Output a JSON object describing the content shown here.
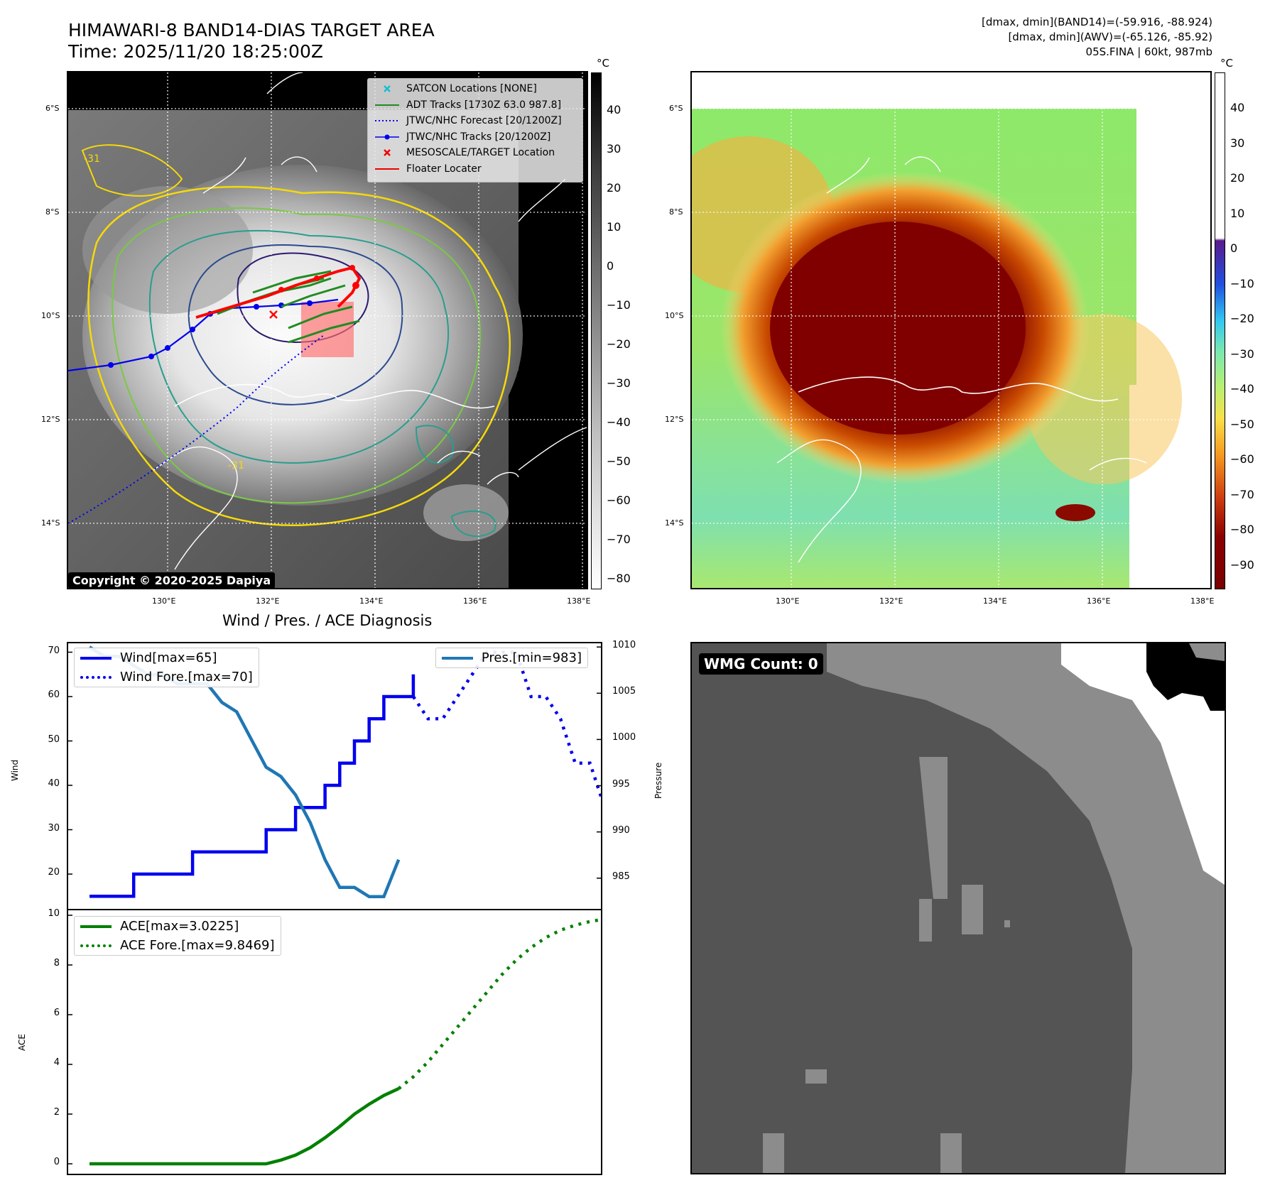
{
  "header": {
    "title": "HIMAWARI-8 BAND14-DIAS TARGET AREA",
    "time": "Time: 2025/11/20 18:25:00Z",
    "info_band14": "[dmax, dmin](BAND14)=(-59.916, -88.924)",
    "info_awv": "[dmax, dmin](AWV)=(-65.126, -85.92)",
    "info_storm": "05S.FINA | 60kt, 987mb"
  },
  "map": {
    "lat_labels": [
      "6°S",
      "8°S",
      "10°S",
      "12°S",
      "14°S"
    ],
    "lon_labels": [
      "130°E",
      "132°E",
      "134°E",
      "136°E",
      "138°E"
    ],
    "contour_label": "-31",
    "copyright": "Copyright © 2020-2025 Dapiya",
    "legend": [
      {
        "label": "SATCON Locations [NONE]",
        "color": "#17becf",
        "kind": "x"
      },
      {
        "label": "ADT Tracks [1730Z 63.0 987.8]",
        "color": "#228b22",
        "kind": "line"
      },
      {
        "label": "JTWC/NHC Forecast [20/1200Z]",
        "color": "#0000ee",
        "kind": "dot"
      },
      {
        "label": "JTWC/NHC Tracks [20/1200Z]",
        "color": "#0000ee",
        "kind": "marker"
      },
      {
        "label": "MESOSCALE/TARGET Location",
        "color": "#ee0000",
        "kind": "x"
      },
      {
        "label": "Floater Locater",
        "color": "#ee0000",
        "kind": "line"
      }
    ]
  },
  "colorbar1": {
    "unit": "°C",
    "ticks": [
      "40",
      "30",
      "20",
      "10",
      "0",
      "−10",
      "−20",
      "−30",
      "−40",
      "−50",
      "−60",
      "−70",
      "−80"
    ]
  },
  "colorbar2": {
    "unit": "°C",
    "ticks": [
      "40",
      "30",
      "20",
      "10",
      "0",
      "−10",
      "−20",
      "−30",
      "−40",
      "−50",
      "−60",
      "−70",
      "−80",
      "−90"
    ]
  },
  "wmg": {
    "label": "WMG Count: 0"
  },
  "chart_data": [
    {
      "type": "line",
      "title": "Wind / Pres. / ACE Diagnosis",
      "ylabel": "Wind",
      "ylabel2": "Pressure",
      "ylim": [
        12,
        72
      ],
      "ylim2": [
        981.6,
        1010.4
      ],
      "xlim": [
        0,
        36
      ],
      "yticks": [
        20,
        30,
        40,
        50,
        60,
        70
      ],
      "yticks2": [
        985,
        990,
        995,
        1000,
        1005,
        1010
      ],
      "series": [
        {
          "name": "Wind[max=65]",
          "style": "solid",
          "color": "#0000ee",
          "x": [
            0,
            2,
            3,
            4,
            5,
            6,
            7,
            8,
            9,
            10,
            11,
            12,
            13,
            14,
            15,
            16,
            17,
            18,
            19,
            20,
            21,
            22
          ],
          "values": [
            15,
            15,
            20,
            20,
            20,
            20,
            25,
            25,
            25,
            25,
            25,
            30,
            30,
            35,
            35,
            40,
            45,
            50,
            55,
            60,
            60,
            65
          ]
        },
        {
          "name": "Wind Fore.[max=70]",
          "style": "dotted",
          "color": "#0000ee",
          "x": [
            22,
            23,
            24,
            25,
            26,
            27,
            28,
            29,
            30,
            31,
            32,
            33,
            34,
            35
          ],
          "values": [
            60,
            55,
            55,
            60,
            65,
            70,
            70,
            70,
            60,
            60,
            55,
            45,
            45,
            35
          ]
        },
        {
          "name": "Pres.[min=983]",
          "style": "solid",
          "color": "#1f77b4",
          "axis": "right",
          "x": [
            0,
            1,
            2,
            3,
            4,
            5,
            6,
            7,
            8,
            9,
            10,
            11,
            12,
            13,
            14,
            15,
            16,
            17,
            18,
            19,
            20,
            21
          ],
          "values": [
            1010,
            1009,
            1009,
            1008,
            1007,
            1007,
            1006,
            1006,
            1006,
            1004,
            1003,
            1000,
            997,
            996,
            994,
            991,
            987,
            984,
            984,
            983,
            983,
            987
          ]
        }
      ]
    },
    {
      "type": "line",
      "ylabel": "ACE",
      "ylim": [
        -0.4,
        10.2
      ],
      "xlim": [
        0,
        36
      ],
      "yticks": [
        0,
        2,
        4,
        6,
        8,
        10
      ],
      "series": [
        {
          "name": "ACE[max=3.0225]",
          "style": "solid",
          "color": "#008000",
          "x": [
            0,
            2,
            4,
            6,
            8,
            10,
            12,
            13,
            14,
            15,
            16,
            17,
            18,
            19,
            20,
            21
          ],
          "values": [
            0,
            0,
            0,
            0,
            0,
            0,
            0,
            0.15,
            0.35,
            0.65,
            1.05,
            1.5,
            2.0,
            2.4,
            2.75,
            3.0225
          ]
        },
        {
          "name": "ACE Fore.[max=9.8469]",
          "style": "dotted",
          "color": "#008000",
          "x": [
            21,
            22,
            23,
            24,
            25,
            26,
            27,
            28,
            29,
            30,
            31,
            32,
            33,
            34,
            35
          ],
          "values": [
            3.0225,
            3.5,
            4.1,
            4.8,
            5.5,
            6.2,
            6.9,
            7.6,
            8.2,
            8.7,
            9.1,
            9.4,
            9.6,
            9.75,
            9.8469
          ]
        }
      ]
    }
  ]
}
